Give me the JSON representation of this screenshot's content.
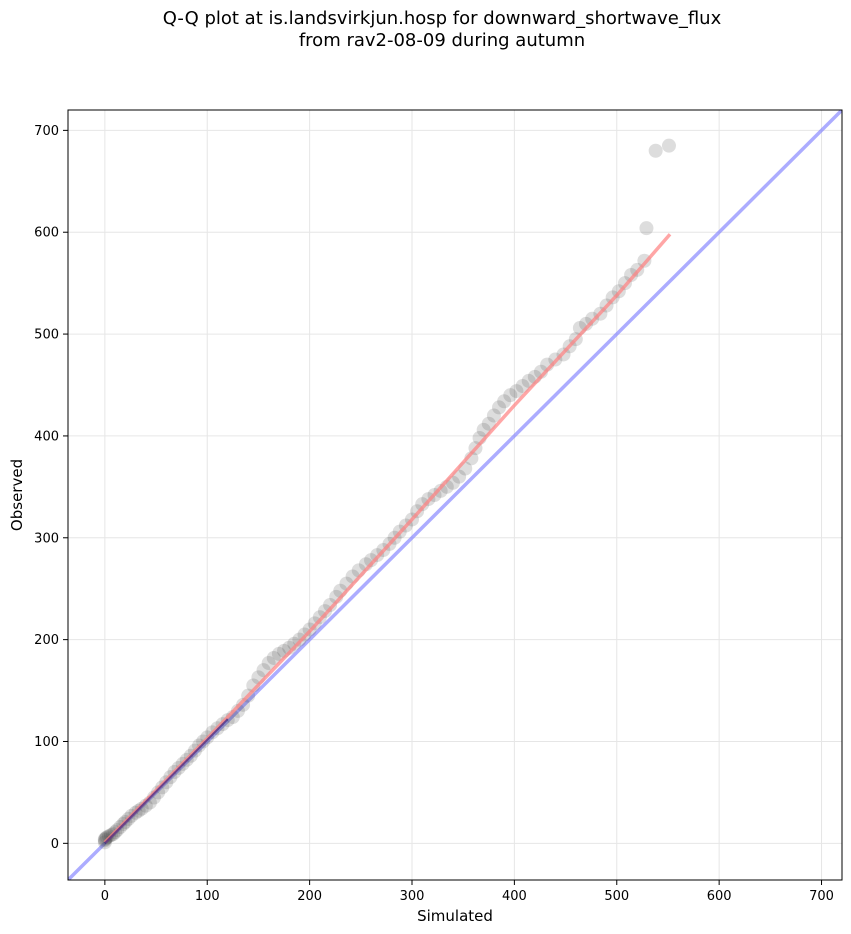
{
  "chart_data": {
    "type": "scatter",
    "title_line1": "Q-Q plot at is.landsvirkjun.hosp for downward_shortwave_flux",
    "title_line2": "from rav2-08-09 during autumn",
    "xlabel": "Simulated",
    "ylabel": "Observed",
    "xlim": [
      -36,
      720
    ],
    "ylim": [
      -36,
      720
    ],
    "xticks": [
      0,
      100,
      200,
      300,
      400,
      500,
      600,
      700
    ],
    "yticks": [
      0,
      100,
      200,
      300,
      400,
      500,
      600,
      700
    ],
    "grid": true,
    "colors": {
      "points": "#404040",
      "identity_line": "#8080ff",
      "fit_line": "#ff8080",
      "low_segment": "#000080"
    },
    "series": [
      {
        "name": "",
        "points": [
          [
            0,
            1
          ],
          [
            0,
            3
          ],
          [
            0,
            4
          ],
          [
            1,
            5
          ],
          [
            2,
            6
          ],
          [
            4,
            7
          ],
          [
            6,
            8
          ],
          [
            8,
            9
          ],
          [
            10,
            11
          ],
          [
            12,
            13
          ],
          [
            15,
            16
          ],
          [
            18,
            19
          ],
          [
            20,
            21
          ],
          [
            23,
            24
          ],
          [
            26,
            27
          ],
          [
            30,
            30
          ],
          [
            33,
            32
          ],
          [
            36,
            34
          ],
          [
            40,
            37
          ],
          [
            44,
            40
          ],
          [
            48,
            45
          ],
          [
            52,
            50
          ],
          [
            56,
            55
          ],
          [
            60,
            60
          ],
          [
            64,
            65
          ],
          [
            68,
            70
          ],
          [
            72,
            74
          ],
          [
            76,
            78
          ],
          [
            80,
            82
          ],
          [
            84,
            86
          ],
          [
            88,
            91
          ],
          [
            92,
            96
          ],
          [
            96,
            100
          ],
          [
            100,
            104
          ],
          [
            105,
            109
          ],
          [
            110,
            113
          ],
          [
            115,
            117
          ],
          [
            120,
            121
          ],
          [
            125,
            124
          ],
          [
            130,
            130
          ],
          [
            135,
            136
          ],
          [
            140,
            145
          ],
          [
            145,
            155
          ],
          [
            150,
            163
          ],
          [
            155,
            170
          ],
          [
            160,
            177
          ],
          [
            165,
            182
          ],
          [
            170,
            186
          ],
          [
            175,
            189
          ],
          [
            180,
            192
          ],
          [
            185,
            196
          ],
          [
            190,
            200
          ],
          [
            195,
            205
          ],
          [
            200,
            210
          ],
          [
            205,
            216
          ],
          [
            210,
            222
          ],
          [
            215,
            228
          ],
          [
            220,
            234
          ],
          [
            226,
            242
          ],
          [
            230,
            248
          ],
          [
            236,
            255
          ],
          [
            242,
            262
          ],
          [
            248,
            268
          ],
          [
            255,
            274
          ],
          [
            260,
            278
          ],
          [
            266,
            283
          ],
          [
            272,
            288
          ],
          [
            278,
            294
          ],
          [
            283,
            300
          ],
          [
            288,
            306
          ],
          [
            294,
            312
          ],
          [
            300,
            318
          ],
          [
            305,
            326
          ],
          [
            310,
            333
          ],
          [
            316,
            338
          ],
          [
            322,
            342
          ],
          [
            328,
            346
          ],
          [
            334,
            350
          ],
          [
            340,
            354
          ],
          [
            346,
            360
          ],
          [
            352,
            368
          ],
          [
            358,
            378
          ],
          [
            362,
            388
          ],
          [
            366,
            398
          ],
          [
            370,
            406
          ],
          [
            375,
            412
          ],
          [
            380,
            420
          ],
          [
            385,
            428
          ],
          [
            390,
            434
          ],
          [
            396,
            440
          ],
          [
            402,
            444
          ],
          [
            408,
            449
          ],
          [
            414,
            454
          ],
          [
            420,
            458
          ],
          [
            426,
            463
          ],
          [
            432,
            470
          ],
          [
            440,
            475
          ],
          [
            448,
            480
          ],
          [
            454,
            488
          ],
          [
            460,
            495
          ],
          [
            464,
            506
          ],
          [
            470,
            510
          ],
          [
            476,
            515
          ],
          [
            484,
            520
          ],
          [
            490,
            528
          ],
          [
            496,
            536
          ],
          [
            502,
            542
          ],
          [
            508,
            550
          ],
          [
            514,
            558
          ],
          [
            520,
            563
          ],
          [
            527,
            572
          ],
          [
            529,
            604
          ],
          [
            538,
            680
          ],
          [
            551,
            685
          ]
        ]
      }
    ],
    "identity_line": [
      [
        -36,
        -36
      ],
      [
        720,
        720
      ]
    ],
    "fit_line": [
      [
        0,
        1
      ],
      [
        100,
        103
      ],
      [
        200,
        208
      ],
      [
        300,
        318
      ],
      [
        400,
        430
      ],
      [
        500,
        538
      ],
      [
        552,
        598
      ]
    ],
    "low_segment": [
      [
        0,
        0
      ],
      [
        120,
        122
      ]
    ]
  }
}
